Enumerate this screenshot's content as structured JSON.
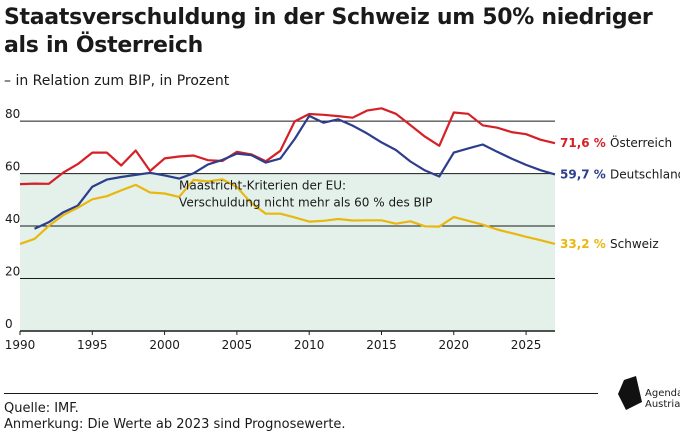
{
  "title": "Staatsverschuldung in der Schweiz um 50% niedriger als in Österreich",
  "subtitle": "– in Relation zum BIP, in Prozent",
  "source": "Quelle: IMF.",
  "note": "Anmerkung: Die Werte ab 2023 sind Prognosewerte.",
  "logo": {
    "line1": "Agenda",
    "line2": "Austria"
  },
  "chart_data": {
    "type": "line",
    "xlim": [
      1990,
      2027
    ],
    "ylim": [
      0,
      85
    ],
    "x_ticks": [
      1990,
      1995,
      2000,
      2005,
      2010,
      2015,
      2020,
      2025
    ],
    "y_ticks": [
      0,
      20,
      40,
      60,
      80
    ],
    "grid": "horizontal",
    "shaded_region": {
      "y_from": 0,
      "y_to": 60,
      "color": "#e3f1ea"
    },
    "annotation": {
      "lines": [
        "Maastricht-Kriterien der EU:",
        "Verschuldung nicht mehr als 60 % des BIP"
      ],
      "x": 2001,
      "y": 54
    },
    "series": [
      {
        "name": "Österreich",
        "end_label": "71,6 %",
        "color": "#d52027",
        "x": [
          1990,
          1991,
          1992,
          1993,
          1994,
          1995,
          1996,
          1997,
          1998,
          1999,
          2000,
          2001,
          2002,
          2003,
          2004,
          2005,
          2006,
          2007,
          2008,
          2009,
          2010,
          2011,
          2012,
          2013,
          2014,
          2015,
          2016,
          2017,
          2018,
          2019,
          2020,
          2021,
          2022,
          2023,
          2024,
          2025,
          2026,
          2027
        ],
        "values": [
          56.0,
          56.2,
          56.1,
          60.4,
          63.6,
          68.0,
          68.0,
          63.1,
          68.8,
          61.0,
          65.8,
          66.5,
          66.9,
          65.1,
          64.8,
          68.3,
          67.3,
          64.7,
          68.7,
          79.9,
          82.7,
          82.4,
          81.9,
          81.3,
          84.0,
          84.9,
          82.8,
          78.5,
          74.1,
          70.6,
          83.3,
          82.8,
          78.4,
          77.5,
          75.8,
          75.0,
          72.9,
          71.6
        ]
      },
      {
        "name": "Deutschland",
        "end_label": "59,7 %",
        "color": "#2c3e8c",
        "x": [
          1991,
          1992,
          1993,
          1994,
          1995,
          1996,
          1997,
          1998,
          1999,
          2000,
          2001,
          2002,
          2003,
          2004,
          2005,
          2006,
          2007,
          2008,
          2009,
          2010,
          2011,
          2012,
          2013,
          2014,
          2015,
          2016,
          2017,
          2018,
          2019,
          2020,
          2021,
          2022,
          2023,
          2024,
          2025,
          2026,
          2027
        ],
        "values": [
          39.0,
          41.5,
          45.3,
          47.8,
          55.0,
          57.7,
          58.7,
          59.5,
          60.3,
          59.3,
          58.1,
          60.1,
          63.5,
          65.2,
          67.6,
          67.0,
          64.2,
          65.7,
          73.2,
          82.0,
          79.4,
          80.7,
          78.3,
          75.3,
          71.9,
          69.0,
          64.6,
          61.2,
          58.9,
          68.0,
          69.6,
          71.1,
          68.3,
          65.7,
          63.3,
          61.3,
          59.7
        ]
      },
      {
        "name": "Schweiz",
        "end_label": "33,2 %",
        "color": "#e9b70f",
        "x": [
          1990,
          1991,
          1992,
          1993,
          1994,
          1995,
          1996,
          1997,
          1998,
          1999,
          2000,
          2001,
          2002,
          2003,
          2004,
          2005,
          2006,
          2007,
          2008,
          2009,
          2010,
          2011,
          2012,
          2013,
          2014,
          2015,
          2016,
          2017,
          2018,
          2019,
          2020,
          2021,
          2022,
          2023,
          2024,
          2025,
          2026,
          2027
        ],
        "values": [
          33.2,
          35.1,
          40.1,
          44.2,
          47.0,
          50.2,
          51.4,
          53.6,
          55.7,
          52.8,
          52.4,
          51.1,
          57.6,
          57.0,
          57.8,
          54.9,
          48.7,
          44.7,
          44.7,
          43.3,
          41.7,
          42.0,
          42.7,
          42.1,
          42.2,
          42.2,
          40.9,
          41.8,
          39.9,
          39.8,
          43.4,
          42.0,
          40.5,
          38.7,
          37.3,
          35.9,
          34.6,
          33.2
        ]
      }
    ]
  }
}
